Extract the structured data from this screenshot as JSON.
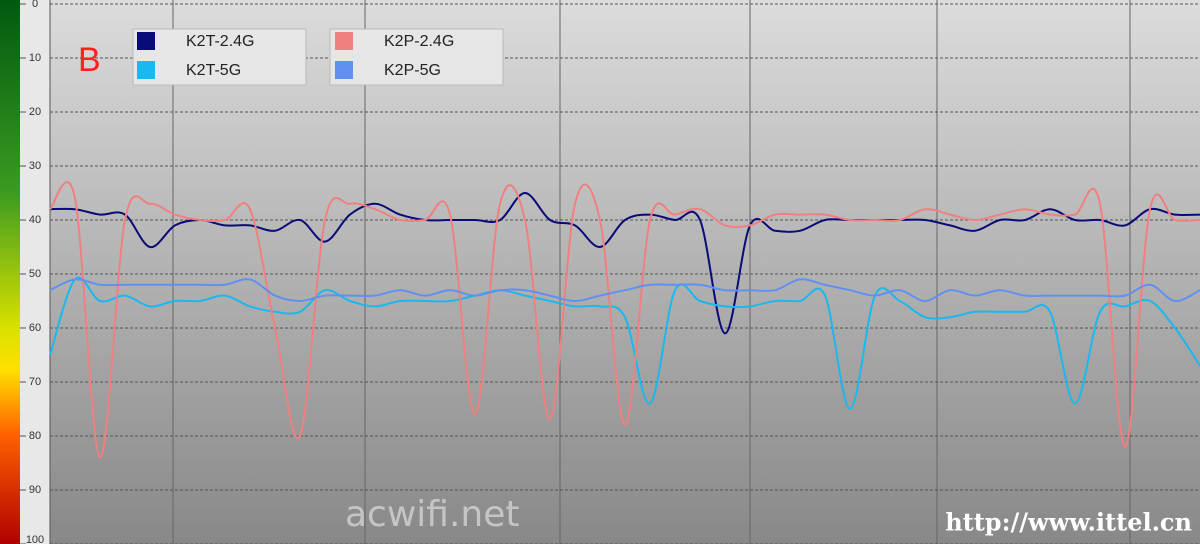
{
  "chart_data": {
    "type": "line",
    "label": "B",
    "watermarks": [
      "acwifi.net",
      "http://www.ittel.cn"
    ],
    "ylim": [
      0,
      100
    ],
    "yticks": [
      0,
      10,
      20,
      30,
      40,
      50,
      60,
      70,
      80,
      90,
      100
    ],
    "inverted": true,
    "grid": true,
    "series": [
      {
        "name": "K2T-2.4G",
        "color": "#0a0a78",
        "values": [
          38,
          38,
          39,
          39,
          45,
          41,
          40,
          41,
          41,
          42,
          40,
          44,
          39,
          37,
          39,
          40,
          40,
          40,
          40,
          35,
          40,
          41,
          45,
          40,
          39,
          40,
          40,
          61,
          41,
          42,
          42,
          40,
          40,
          40,
          40,
          40,
          41,
          42,
          40,
          40,
          38,
          40,
          40,
          41,
          38,
          39,
          39
        ]
      },
      {
        "name": "K2T-5G",
        "color": "#1ab8f0",
        "values": [
          65,
          51,
          55,
          54,
          56,
          55,
          55,
          54,
          56,
          57,
          57,
          53,
          55,
          56,
          55,
          55,
          55,
          54,
          53,
          54,
          55,
          56,
          56,
          58,
          74,
          53,
          55,
          56,
          56,
          55,
          55,
          54,
          75,
          54,
          55,
          58,
          58,
          57,
          57,
          57,
          57,
          74,
          57,
          56,
          55,
          60,
          67
        ]
      },
      {
        "name": "K2P-2.4G",
        "color": "#f08080",
        "values": [
          38,
          36,
          84,
          40,
          37,
          39,
          40,
          40,
          38,
          60,
          80,
          40,
          37,
          38,
          40,
          40,
          39,
          76,
          37,
          40,
          77,
          37,
          40,
          78,
          40,
          39,
          38,
          41,
          41,
          39,
          39,
          39,
          40,
          40,
          40,
          38,
          39,
          40,
          39,
          38,
          39,
          39,
          37,
          82,
          38,
          40,
          40
        ]
      },
      {
        "name": "K2P-5G",
        "color": "#6090f0",
        "values": [
          53,
          51,
          52,
          52,
          52,
          52,
          52,
          52,
          51,
          54,
          55,
          54,
          54,
          54,
          53,
          54,
          53,
          54,
          53,
          53,
          54,
          55,
          54,
          53,
          52,
          52,
          52,
          53,
          53,
          53,
          51,
          52,
          53,
          54,
          53,
          55,
          53,
          54,
          53,
          54,
          54,
          54,
          54,
          54,
          52,
          55,
          53
        ]
      }
    ]
  }
}
